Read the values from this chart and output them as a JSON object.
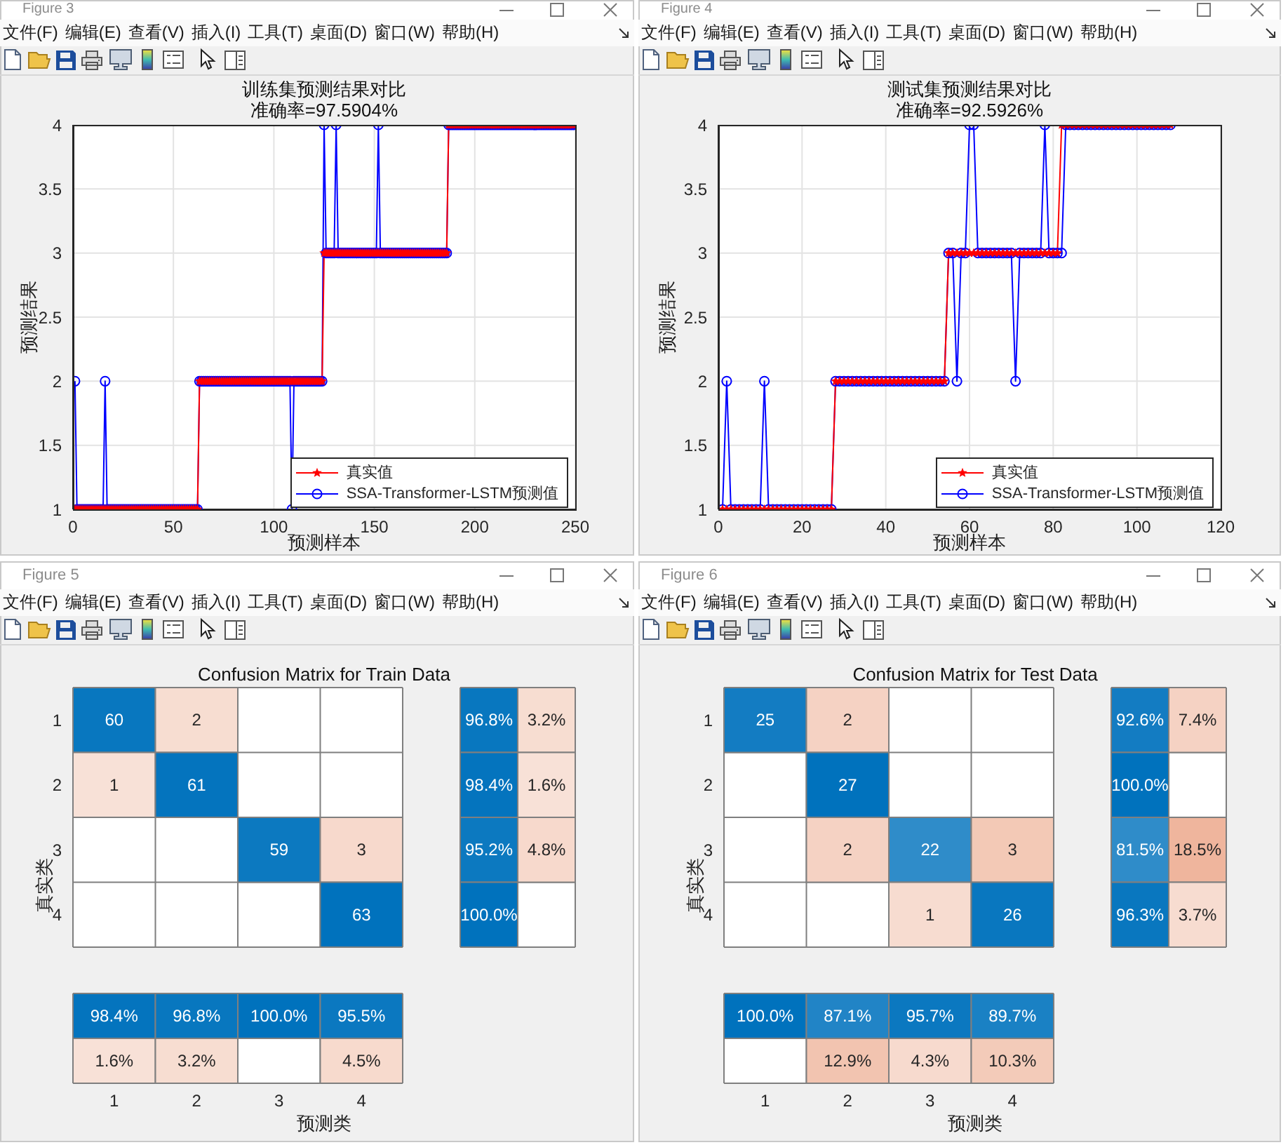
{
  "chart_data": [
    {
      "type": "other",
      "title": "Figure 3",
      "annotations": [
        "文件(F)",
        "编辑(E)",
        "查看(V)",
        "插入(I)",
        "工具(T)",
        "桌面(D)",
        "窗口(W)",
        "帮助(H)"
      ]
    },
    {
      "type": "line",
      "title": "训练集预测结果对比",
      "subtitle": "准确率=97.5904%",
      "xlabel": "预测样本",
      "ylabel": "预测结果",
      "x": [
        1,
        2,
        3,
        4,
        5,
        6,
        7,
        8,
        9,
        10,
        11,
        12,
        13,
        14,
        15,
        16,
        17,
        18,
        19,
        20,
        21,
        22,
        23,
        24,
        25,
        26,
        27,
        28,
        29,
        30,
        31,
        32,
        33,
        34,
        35,
        36,
        37,
        38,
        39,
        40,
        41,
        42,
        43,
        44,
        45,
        46,
        47,
        48,
        49,
        50,
        51,
        52,
        53,
        54,
        55,
        56,
        57,
        58,
        59,
        60,
        61,
        62,
        63,
        64,
        65,
        66,
        67,
        68,
        69,
        70,
        71,
        72,
        73,
        74,
        75,
        76,
        77,
        78,
        79,
        80,
        81,
        82,
        83,
        84,
        85,
        86,
        87,
        88,
        89,
        90,
        91,
        92,
        93,
        94,
        95,
        96,
        97,
        98,
        99,
        100,
        101,
        102,
        103,
        104,
        105,
        106,
        107,
        108,
        109,
        110,
        111,
        112,
        113,
        114,
        115,
        116,
        117,
        118,
        119,
        120,
        121,
        122,
        123,
        124,
        125,
        126,
        127,
        128,
        129,
        130,
        131,
        132,
        133,
        134,
        135,
        136,
        137,
        138,
        139,
        140,
        141,
        142,
        143,
        144,
        145,
        146,
        147,
        148,
        149,
        150,
        151,
        152,
        153,
        154,
        155,
        156,
        157,
        158,
        159,
        160,
        161,
        162,
        163,
        164,
        165,
        166,
        167,
        168,
        169,
        170,
        171,
        172,
        173,
        174,
        175,
        176,
        177,
        178,
        179,
        180,
        181,
        182,
        183,
        184,
        185,
        186,
        187,
        188,
        189,
        190,
        191,
        192,
        193,
        194,
        195,
        196,
        197,
        198,
        199,
        200,
        201,
        202,
        203,
        204,
        205,
        206,
        207,
        208,
        209,
        210,
        211,
        212,
        213,
        214,
        215,
        216,
        217,
        218,
        219,
        220,
        221,
        222,
        223,
        224,
        225,
        226,
        227,
        228,
        229,
        230,
        231,
        232,
        233,
        234,
        235,
        236,
        237,
        238,
        239,
        240,
        241,
        242,
        243,
        244,
        245,
        246,
        247,
        248,
        249
      ],
      "series": [
        {
          "name": "真实值",
          "color": "#ff0000",
          "marker": "star",
          "values": [
            1,
            1,
            1,
            1,
            1,
            1,
            1,
            1,
            1,
            1,
            1,
            1,
            1,
            1,
            1,
            1,
            1,
            1,
            1,
            1,
            1,
            1,
            1,
            1,
            1,
            1,
            1,
            1,
            1,
            1,
            1,
            1,
            1,
            1,
            1,
            1,
            1,
            1,
            1,
            1,
            1,
            1,
            1,
            1,
            1,
            1,
            1,
            1,
            1,
            1,
            1,
            1,
            1,
            1,
            1,
            1,
            1,
            1,
            1,
            1,
            1,
            1,
            2,
            2,
            2,
            2,
            2,
            2,
            2,
            2,
            2,
            2,
            2,
            2,
            2,
            2,
            2,
            2,
            2,
            2,
            2,
            2,
            2,
            2,
            2,
            2,
            2,
            2,
            2,
            2,
            2,
            2,
            2,
            2,
            2,
            2,
            2,
            2,
            2,
            2,
            2,
            2,
            2,
            2,
            2,
            2,
            2,
            2,
            2,
            2,
            2,
            2,
            2,
            2,
            2,
            2,
            2,
            2,
            2,
            2,
            2,
            2,
            2,
            2,
            3,
            3,
            3,
            3,
            3,
            3,
            3,
            3,
            3,
            3,
            3,
            3,
            3,
            3,
            3,
            3,
            3,
            3,
            3,
            3,
            3,
            3,
            3,
            3,
            3,
            3,
            3,
            3,
            3,
            3,
            3,
            3,
            3,
            3,
            3,
            3,
            3,
            3,
            3,
            3,
            3,
            3,
            3,
            3,
            3,
            3,
            3,
            3,
            3,
            3,
            3,
            3,
            3,
            3,
            3,
            3,
            3,
            3,
            3,
            3,
            3,
            3,
            4,
            4,
            4,
            4,
            4,
            4,
            4,
            4,
            4,
            4,
            4,
            4,
            4,
            4,
            4,
            4,
            4,
            4,
            4,
            4,
            4,
            4,
            4,
            4,
            4,
            4,
            4,
            4,
            4,
            4,
            4,
            4,
            4,
            4,
            4,
            4,
            4,
            4,
            4,
            4,
            4,
            4,
            4,
            4,
            4,
            4,
            4,
            4,
            4,
            4,
            4,
            4,
            4,
            4,
            4,
            4,
            4,
            4,
            4,
            4,
            4,
            4,
            4
          ]
        },
        {
          "name": "SSA-Transformer-LSTM预测值",
          "color": "#0000ff",
          "marker": "circle",
          "values": [
            2,
            1,
            1,
            1,
            1,
            1,
            1,
            1,
            1,
            1,
            1,
            1,
            1,
            1,
            1,
            2,
            1,
            1,
            1,
            1,
            1,
            1,
            1,
            1,
            1,
            1,
            1,
            1,
            1,
            1,
            1,
            1,
            1,
            1,
            1,
            1,
            1,
            1,
            1,
            1,
            1,
            1,
            1,
            1,
            1,
            1,
            1,
            1,
            1,
            1,
            1,
            1,
            1,
            1,
            1,
            1,
            1,
            1,
            1,
            1,
            1,
            1,
            2,
            2,
            2,
            2,
            2,
            2,
            2,
            2,
            2,
            2,
            2,
            2,
            2,
            2,
            2,
            2,
            2,
            2,
            2,
            2,
            2,
            2,
            2,
            2,
            2,
            2,
            2,
            2,
            2,
            2,
            2,
            2,
            2,
            2,
            2,
            2,
            2,
            2,
            2,
            2,
            2,
            2,
            2,
            2,
            2,
            2,
            1,
            2,
            2,
            2,
            2,
            2,
            2,
            2,
            2,
            2,
            2,
            2,
            2,
            2,
            2,
            2,
            4,
            3,
            3,
            3,
            3,
            3,
            4,
            3,
            3,
            3,
            3,
            3,
            3,
            3,
            3,
            3,
            3,
            3,
            3,
            3,
            3,
            3,
            3,
            3,
            3,
            3,
            3,
            4,
            3,
            3,
            3,
            3,
            3,
            3,
            3,
            3,
            3,
            3,
            3,
            3,
            3,
            3,
            3,
            3,
            3,
            3,
            3,
            3,
            3,
            3,
            3,
            3,
            3,
            3,
            3,
            3,
            3,
            3,
            3,
            3,
            3,
            3,
            4,
            4,
            4,
            4,
            4,
            4,
            4,
            4,
            4,
            4,
            4,
            4,
            4,
            4,
            4,
            4,
            4,
            4,
            4,
            4,
            4,
            4,
            4,
            4,
            4,
            4,
            4,
            4,
            4,
            4,
            4,
            4,
            4,
            4,
            4,
            4,
            4,
            4,
            4,
            4,
            4,
            4,
            4,
            4,
            4,
            4,
            4,
            4,
            4,
            4,
            4,
            4,
            4,
            4,
            4,
            4,
            4,
            4,
            4,
            4,
            4,
            4,
            4
          ]
        }
      ],
      "xlim": [
        0,
        250
      ],
      "xticks": [
        0,
        50,
        100,
        150,
        200,
        250
      ],
      "ylim": [
        1,
        4
      ],
      "yticks": [
        1,
        1.5,
        2,
        2.5,
        3,
        3.5,
        4
      ],
      "grid": true,
      "legend": "bottom right"
    },
    {
      "type": "other",
      "title": "Figure 4",
      "annotations": [
        "文件(F)",
        "编辑(E)",
        "查看(V)",
        "插入(I)",
        "工具(T)",
        "桌面(D)",
        "窗口(W)",
        "帮助(H)"
      ]
    },
    {
      "type": "line",
      "title": "测试集预测结果对比",
      "subtitle": "准确率=92.5926%",
      "xlabel": "预测样本",
      "ylabel": "预测结果",
      "x": [
        1,
        2,
        3,
        4,
        5,
        6,
        7,
        8,
        9,
        10,
        11,
        12,
        13,
        14,
        15,
        16,
        17,
        18,
        19,
        20,
        21,
        22,
        23,
        24,
        25,
        26,
        27,
        28,
        29,
        30,
        31,
        32,
        33,
        34,
        35,
        36,
        37,
        38,
        39,
        40,
        41,
        42,
        43,
        44,
        45,
        46,
        47,
        48,
        49,
        50,
        51,
        52,
        53,
        54,
        55,
        56,
        57,
        58,
        59,
        60,
        61,
        62,
        63,
        64,
        65,
        66,
        67,
        68,
        69,
        70,
        71,
        72,
        73,
        74,
        75,
        76,
        77,
        78,
        79,
        80,
        81,
        82,
        83,
        84,
        85,
        86,
        87,
        88,
        89,
        90,
        91,
        92,
        93,
        94,
        95,
        96,
        97,
        98,
        99,
        100,
        101,
        102,
        103,
        104,
        105,
        106,
        107,
        108
      ],
      "series": [
        {
          "name": "真实值",
          "color": "#ff0000",
          "marker": "star",
          "values": [
            1,
            1,
            1,
            1,
            1,
            1,
            1,
            1,
            1,
            1,
            1,
            1,
            1,
            1,
            1,
            1,
            1,
            1,
            1,
            1,
            1,
            1,
            1,
            1,
            1,
            1,
            1,
            2,
            2,
            2,
            2,
            2,
            2,
            2,
            2,
            2,
            2,
            2,
            2,
            2,
            2,
            2,
            2,
            2,
            2,
            2,
            2,
            2,
            2,
            2,
            2,
            2,
            2,
            2,
            3,
            3,
            3,
            3,
            3,
            3,
            3,
            3,
            3,
            3,
            3,
            3,
            3,
            3,
            3,
            3,
            3,
            3,
            3,
            3,
            3,
            3,
            3,
            3,
            3,
            3,
            3,
            4,
            4,
            4,
            4,
            4,
            4,
            4,
            4,
            4,
            4,
            4,
            4,
            4,
            4,
            4,
            4,
            4,
            4,
            4,
            4,
            4,
            4,
            4,
            4,
            4,
            4,
            4
          ]
        },
        {
          "name": "SSA-Transformer-LSTM预测值",
          "color": "#0000ff",
          "marker": "circle",
          "values": [
            1,
            2,
            1,
            1,
            1,
            1,
            1,
            1,
            1,
            1,
            2,
            1,
            1,
            1,
            1,
            1,
            1,
            1,
            1,
            1,
            1,
            1,
            1,
            1,
            1,
            1,
            1,
            2,
            2,
            2,
            2,
            2,
            2,
            2,
            2,
            2,
            2,
            2,
            2,
            2,
            2,
            2,
            2,
            2,
            2,
            2,
            2,
            2,
            2,
            2,
            2,
            2,
            2,
            2,
            3,
            3,
            2,
            3,
            3,
            4,
            4,
            3,
            3,
            3,
            3,
            3,
            3,
            3,
            3,
            3,
            2,
            3,
            3,
            3,
            3,
            3,
            3,
            4,
            3,
            3,
            3,
            3,
            4,
            4,
            4,
            4,
            4,
            4,
            4,
            4,
            4,
            4,
            4,
            4,
            4,
            4,
            4,
            4,
            4,
            4,
            4,
            4,
            4,
            4,
            4,
            4,
            4,
            4
          ]
        }
      ],
      "xlim": [
        0,
        120
      ],
      "xticks": [
        0,
        20,
        40,
        60,
        80,
        100,
        120
      ],
      "ylim": [
        1,
        4
      ],
      "yticks": [
        1,
        1.5,
        2,
        2.5,
        3,
        3.5,
        4
      ],
      "grid": true,
      "legend": "bottom right"
    },
    {
      "type": "other",
      "title": "Figure 5",
      "annotations": [
        "文件(F)",
        "编辑(E)",
        "查看(V)",
        "插入(I)",
        "工具(T)",
        "桌面(D)",
        "窗口(W)",
        "帮助(H)"
      ]
    },
    {
      "type": "heatmap",
      "title": "Confusion Matrix for Train Data",
      "ylabel": "真实类",
      "categories": [
        null,
        null,
        null,
        null
      ],
      "y_categories": [
        "1",
        "2",
        "3",
        "4"
      ],
      "cells": [
        [
          60,
          2,
          null,
          null
        ],
        [
          1,
          61,
          null,
          null
        ],
        [
          null,
          null,
          59,
          3
        ],
        [
          null,
          null,
          null,
          63
        ]
      ],
      "data_labels": true,
      "tick_labels": "y"
    },
    {
      "type": "heatmap",
      "categories": [
        null,
        null
      ],
      "y_categories": [
        null,
        null,
        null,
        null
      ],
      "cells": [
        [
          96.8,
          3.2
        ],
        [
          98.4,
          1.6
        ],
        [
          95.2,
          4.8
        ],
        [
          100.0,
          null
        ]
      ],
      "cell_labels": [
        [
          "96.8%",
          "3.2%"
        ],
        [
          "98.4%",
          "1.6%"
        ],
        [
          "95.2%",
          "4.8%"
        ],
        [
          "100.0%",
          null
        ]
      ],
      "tick_labels": false
    },
    {
      "type": "heatmap",
      "xlabel": "预测类",
      "categories": [
        "1",
        "2",
        "3",
        "4"
      ],
      "y_categories": [
        null,
        null
      ],
      "cells": [
        [
          98.4,
          96.8,
          100.0,
          95.5
        ],
        [
          1.6,
          3.2,
          null,
          4.5
        ]
      ],
      "cell_labels": [
        [
          "98.4%",
          "96.8%",
          "100.0%",
          "95.5%"
        ],
        [
          "1.6%",
          "3.2%",
          null,
          "4.5%"
        ]
      ],
      "tick_labels": "x"
    },
    {
      "type": "other",
      "title": "Figure 6",
      "annotations": [
        "文件(F)",
        "编辑(E)",
        "查看(V)",
        "插入(I)",
        "工具(T)",
        "桌面(D)",
        "窗口(W)",
        "帮助(H)"
      ]
    },
    {
      "type": "heatmap",
      "title": "Confusion Matrix for Test Data",
      "ylabel": "真实类",
      "categories": [
        null,
        null,
        null,
        null
      ],
      "y_categories": [
        "1",
        "2",
        "3",
        "4"
      ],
      "cells": [
        [
          25,
          2,
          null,
          null
        ],
        [
          null,
          27,
          null,
          null
        ],
        [
          null,
          2,
          22,
          3
        ],
        [
          null,
          null,
          1,
          26
        ]
      ],
      "data_labels": true,
      "tick_labels": "y"
    },
    {
      "type": "heatmap",
      "categories": [
        null,
        null
      ],
      "y_categories": [
        null,
        null,
        null,
        null
      ],
      "cells": [
        [
          92.6,
          7.4
        ],
        [
          100.0,
          null
        ],
        [
          81.5,
          18.5
        ],
        [
          96.3,
          3.7
        ]
      ],
      "cell_labels": [
        [
          "92.6%",
          "7.4%"
        ],
        [
          "100.0%",
          null
        ],
        [
          "81.5%",
          "18.5%"
        ],
        [
          "96.3%",
          "3.7%"
        ]
      ],
      "tick_labels": false
    },
    {
      "type": "heatmap",
      "xlabel": "预测类",
      "categories": [
        "1",
        "2",
        "3",
        "4"
      ],
      "y_categories": [
        null,
        null
      ],
      "cells": [
        [
          100.0,
          87.1,
          95.7,
          89.7
        ],
        [
          null,
          12.9,
          4.3,
          10.3
        ]
      ],
      "cell_labels": [
        [
          "100.0%",
          "87.1%",
          "95.7%",
          "89.7%"
        ],
        [
          null,
          "12.9%",
          "4.3%",
          "10.3%"
        ]
      ],
      "tick_labels": "x"
    }
  ]
}
